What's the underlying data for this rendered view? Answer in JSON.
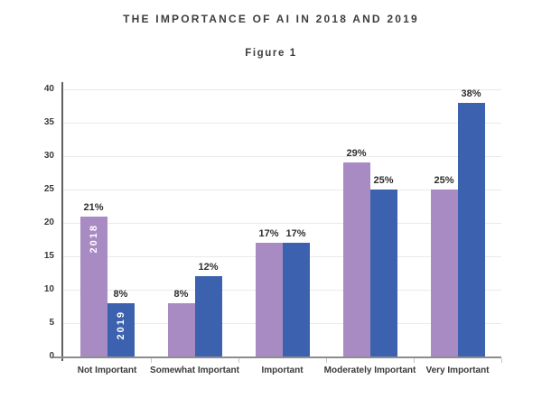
{
  "chart_data": {
    "type": "bar",
    "title": "THE IMPORTANCE OF AI IN 2018 AND 2019",
    "subtitle": "Figure 1",
    "categories": [
      "Not Important",
      "Somewhat Important",
      "Important",
      "Moderately Important",
      "Very Important"
    ],
    "series": [
      {
        "name": "2018",
        "color": "#a98bc4",
        "values": [
          21,
          8,
          17,
          29,
          25
        ]
      },
      {
        "name": "2019",
        "color": "#3c61ae",
        "values": [
          8,
          12,
          17,
          25,
          38
        ]
      }
    ],
    "value_labels": [
      [
        "21%",
        "8%",
        "17%",
        "29%",
        "25%"
      ],
      [
        "8%",
        "12%",
        "17%",
        "25%",
        "38%"
      ]
    ],
    "value_suffix": "%",
    "xlabel": "",
    "ylabel": "",
    "ylim": [
      0,
      40
    ],
    "yticks": [
      0,
      5,
      10,
      15,
      20,
      25,
      30,
      35,
      40
    ],
    "grid": true,
    "legend_position": "inside-first-bars",
    "colors": {
      "title_text": "#3d3d3d",
      "axis_text": "#3a3a3a",
      "value_label_text": "#2e2e2e",
      "gridline": "#ebe9ec",
      "y_axis_line": "#606060",
      "x_axis_line": "#8d8d8d",
      "bar_year_text": "#ffffff",
      "background": "#ffffff"
    }
  }
}
